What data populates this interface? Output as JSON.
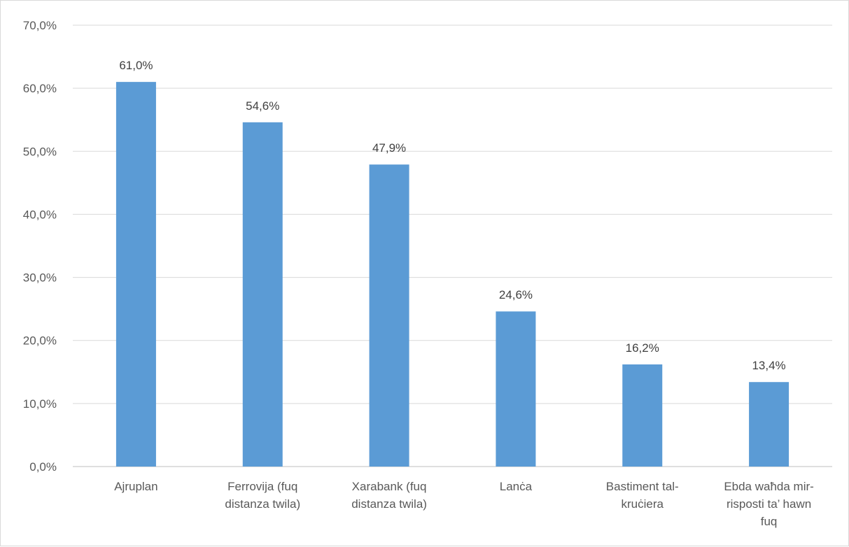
{
  "chart_data": {
    "type": "bar",
    "categories": [
      [
        "Ajruplan"
      ],
      [
        "Ferrovija (fuq",
        "distanza twila)"
      ],
      [
        "Xarabank (fuq",
        "distanza twila)"
      ],
      [
        "Lanċa"
      ],
      [
        "Bastiment tal-",
        "kruċiera"
      ],
      [
        "Ebda waħda mir-",
        "risposti ta’ hawn",
        "fuq"
      ]
    ],
    "values": [
      61.0,
      54.6,
      47.9,
      24.6,
      16.2,
      13.4
    ],
    "data_labels": [
      "61,0%",
      "54,6%",
      "47,9%",
      "24,6%",
      "16,2%",
      "13,4%"
    ],
    "ylim": [
      0,
      70
    ],
    "yticks": [
      0,
      10,
      20,
      30,
      40,
      50,
      60,
      70
    ],
    "ytick_labels": [
      "0,0%",
      "10,0%",
      "20,0%",
      "30,0%",
      "40,0%",
      "50,0%",
      "60,0%",
      "70,0%"
    ],
    "grid": true,
    "legend": "none",
    "bar_color": "#5b9bd5",
    "grid_color": "#d9d9d9"
  }
}
